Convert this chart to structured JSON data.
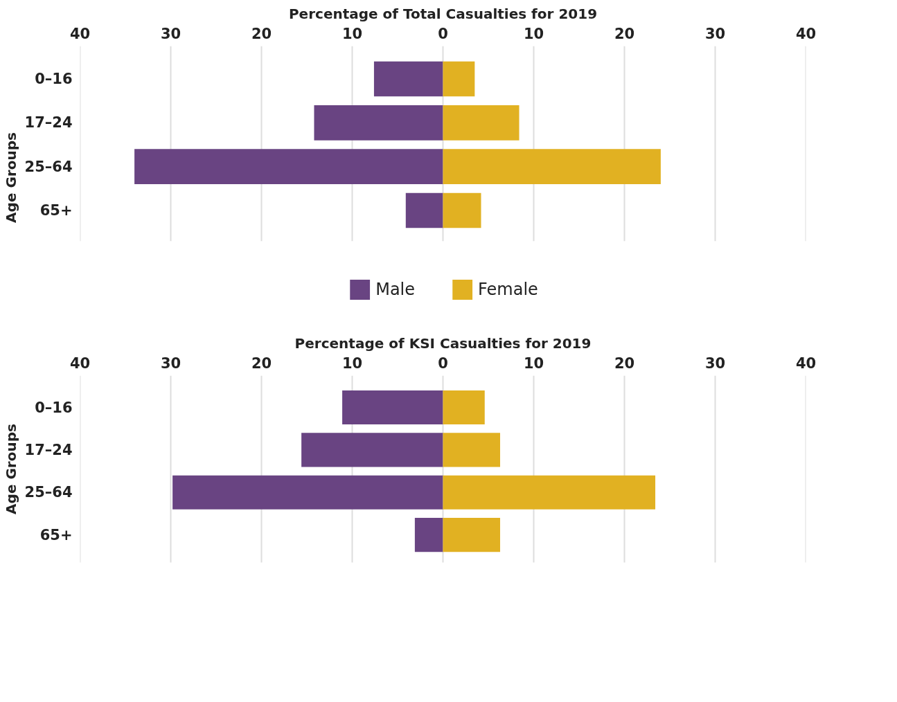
{
  "chart_data": [
    {
      "type": "bar",
      "title": "Percentage of Total Casualties for 2019",
      "ylabel": "Age Groups",
      "orientation": "horizontal",
      "stacked": true,
      "categories": [
        "0–16",
        "17–24",
        "25–64",
        "65+"
      ],
      "series": [
        {
          "name": "Male",
          "color": "#694482",
          "values": [
            -7.6,
            -14.2,
            -34.0,
            -4.1
          ]
        },
        {
          "name": "Female",
          "color": "#e1b122",
          "values": [
            3.5,
            8.4,
            24.0,
            4.2
          ]
        }
      ],
      "xlim": [
        -40,
        40
      ],
      "xticks": [
        {
          "value": -40,
          "label": "40"
        },
        {
          "value": -30,
          "label": "30"
        },
        {
          "value": -20,
          "label": "20"
        },
        {
          "value": -10,
          "label": "10"
        },
        0,
        10,
        20,
        30,
        40
      ],
      "grid": "x",
      "legend": "bottom"
    },
    {
      "type": "bar",
      "title": "Percentage of KSI Casualties for 2019",
      "ylabel": "Age Groups",
      "orientation": "horizontal",
      "stacked": true,
      "categories": [
        "0–16",
        "17–24",
        "25–64",
        "65+"
      ],
      "series": [
        {
          "color": "#694482",
          "values": [
            -11.1,
            -15.6,
            -29.8,
            -3.1
          ]
        },
        {
          "color": "#e1b122",
          "values": [
            4.6,
            6.3,
            23.4,
            6.3
          ]
        }
      ],
      "xlim": [
        -40,
        40
      ],
      "xticks": [
        {
          "value": -40,
          "label": "40"
        },
        {
          "value": -30,
          "label": "30"
        },
        {
          "value": -20,
          "label": "20"
        },
        {
          "value": -10,
          "label": "10"
        },
        0,
        10,
        20,
        30,
        40
      ],
      "grid": "x"
    }
  ]
}
